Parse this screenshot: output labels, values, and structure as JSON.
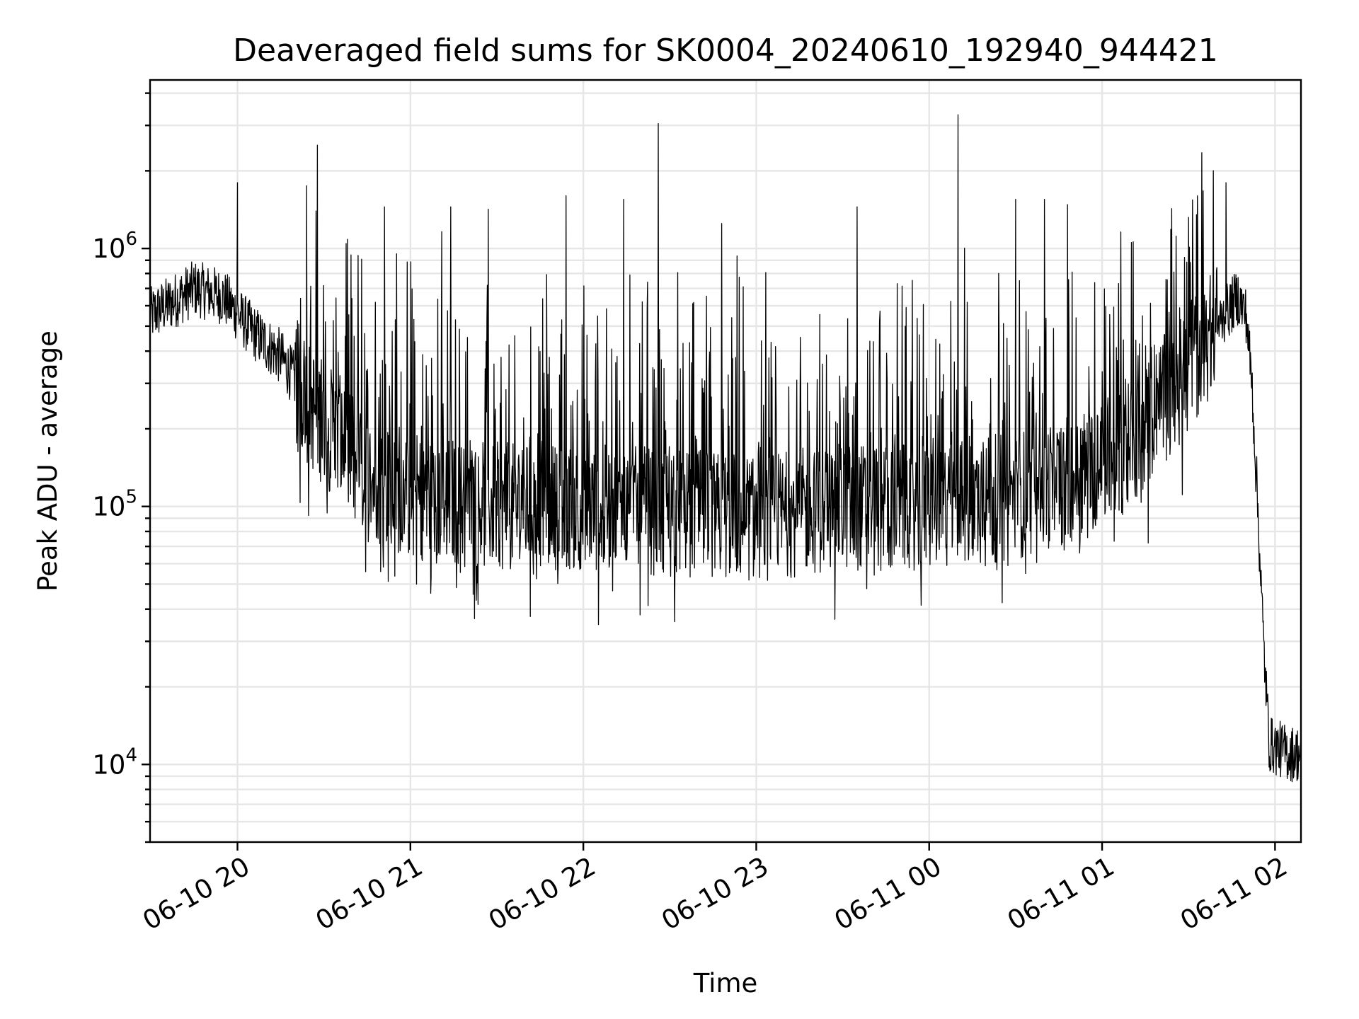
{
  "chart_data": {
    "type": "line",
    "title": "Deaveraged field sums for SK0004_20240610_192940_944421",
    "xlabel": "Time",
    "ylabel": "Peak ADU - average",
    "yscale": "log",
    "ylim": [
      5000,
      4500000
    ],
    "xlim": [
      "2024-06-10 19:29:40",
      "2024-06-11 02:09:00"
    ],
    "x_ticks": [
      {
        "label": "06-10 20",
        "t": "2024-06-10 20:00"
      },
      {
        "label": "06-10 21",
        "t": "2024-06-10 21:00"
      },
      {
        "label": "06-10 22",
        "t": "2024-06-10 22:00"
      },
      {
        "label": "06-10 23",
        "t": "2024-06-10 23:00"
      },
      {
        "label": "06-11 00",
        "t": "2024-06-11 00:00"
      },
      {
        "label": "06-11 01",
        "t": "2024-06-11 01:00"
      },
      {
        "label": "06-11 02",
        "t": "2024-06-11 02:00"
      }
    ],
    "y_ticks": [
      {
        "base": "10",
        "exp": "4",
        "value": 10000
      },
      {
        "base": "10",
        "exp": "5",
        "value": 100000
      },
      {
        "base": "10",
        "exp": "6",
        "value": 1000000
      }
    ],
    "grid": true,
    "line_color": "#000000",
    "series": [
      {
        "envelope": [
          [
            "2024-06-10 19:29:40",
            550000
          ],
          [
            "2024-06-10 19:45",
            700000
          ],
          [
            "2024-06-10 19:55",
            650000
          ],
          [
            "2024-06-10 20:05",
            480000
          ],
          [
            "2024-06-10 20:15",
            380000
          ],
          [
            "2024-06-10 20:25",
            250000
          ],
          [
            "2024-06-10 20:35",
            180000
          ],
          [
            "2024-06-10 20:45",
            130000
          ],
          [
            "2024-06-10 21:00",
            110000
          ],
          [
            "2024-06-10 21:30",
            100000
          ],
          [
            "2024-06-10 22:00",
            100000
          ],
          [
            "2024-06-10 22:30",
            95000
          ],
          [
            "2024-06-10 23:00",
            90000
          ],
          [
            "2024-06-10 23:30",
            100000
          ],
          [
            "2024-06-11 00:00",
            100000
          ],
          [
            "2024-06-11 00:30",
            110000
          ],
          [
            "2024-06-11 00:50",
            130000
          ],
          [
            "2024-06-11 01:10",
            170000
          ],
          [
            "2024-06-11 01:20",
            250000
          ],
          [
            "2024-06-11 01:30",
            330000
          ],
          [
            "2024-06-11 01:40",
            500000
          ],
          [
            "2024-06-11 01:47",
            650000
          ],
          [
            "2024-06-11 01:50",
            550000
          ],
          [
            "2024-06-11 01:52",
            300000
          ],
          [
            "2024-06-11 01:54",
            100000
          ],
          [
            "2024-06-11 01:56",
            30000
          ],
          [
            "2024-06-11 01:58",
            12000
          ],
          [
            "2024-06-11 02:05",
            11000
          ],
          [
            "2024-06-11 02:09",
            11000
          ]
        ],
        "spikes": [
          [
            "2024-06-10 20:00",
            1800000
          ],
          [
            "2024-06-10 20:24",
            1750000
          ],
          [
            "2024-06-10 20:51",
            1450000
          ],
          [
            "2024-06-10 21:14",
            1450000
          ],
          [
            "2024-06-10 21:27",
            1420000
          ],
          [
            "2024-06-10 21:54",
            1600000
          ],
          [
            "2024-06-10 22:14",
            1550000
          ],
          [
            "2024-06-10 22:26",
            3050000
          ],
          [
            "2024-06-10 22:48",
            1250000
          ],
          [
            "2024-06-10 23:35",
            1450000
          ],
          [
            "2024-06-11 00:10",
            3300000
          ],
          [
            "2024-06-11 00:30",
            1550000
          ],
          [
            "2024-06-11 00:40",
            1550000
          ],
          [
            "2024-06-11 00:48",
            1480000
          ],
          [
            "2024-06-11 01:43",
            1800000
          ]
        ]
      }
    ]
  }
}
